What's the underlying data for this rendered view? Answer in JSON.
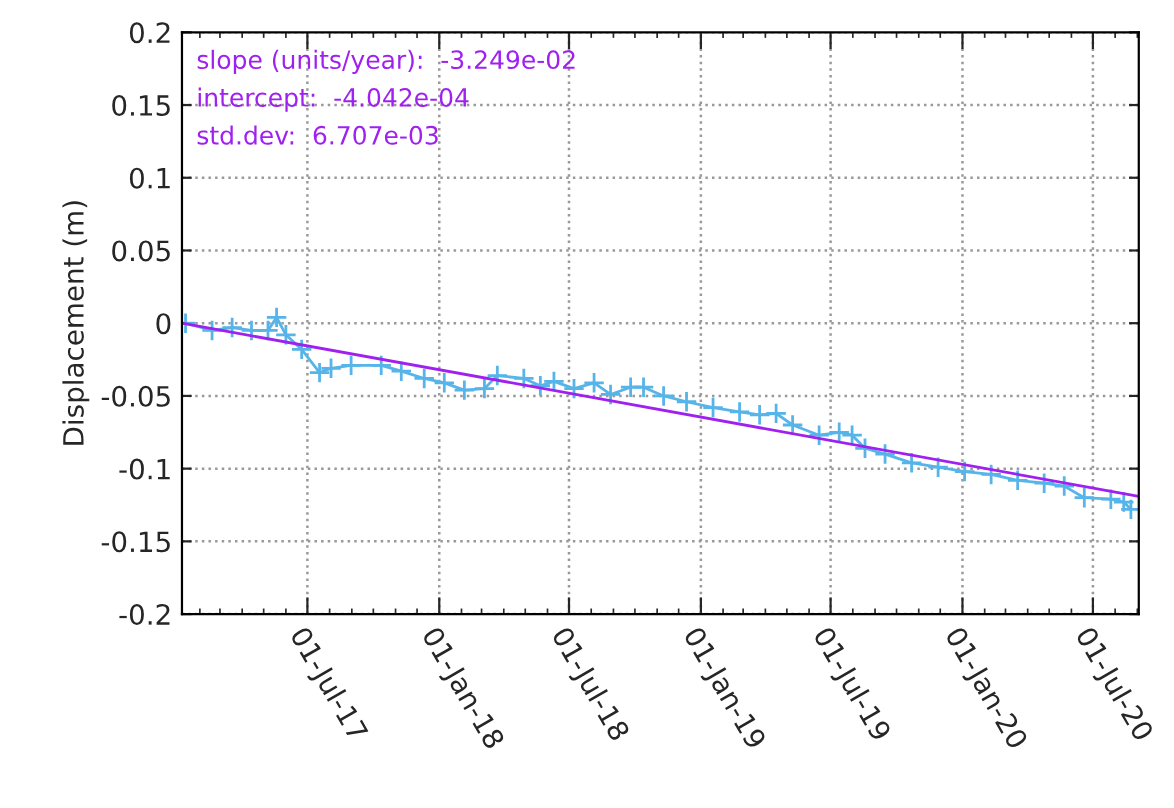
{
  "chart_data": {
    "type": "line",
    "ylabel": "Displacement (m)",
    "annotations": [
      "slope (units/year):  -3.249e-02",
      "intercept:  -4.042e-04",
      "std.dev:  6.707e-03"
    ],
    "xlim": [
      "2017-01-07",
      "2020-09-03"
    ],
    "xticks": [
      {
        "value": "2017-07-01",
        "label": "01-Jul-17"
      },
      {
        "value": "2018-01-01",
        "label": "01-Jan-18"
      },
      {
        "value": "2018-07-01",
        "label": "01-Jul-18"
      },
      {
        "value": "2019-01-01",
        "label": "01-Jan-19"
      },
      {
        "value": "2019-07-01",
        "label": "01-Jul-19"
      },
      {
        "value": "2020-01-01",
        "label": "01-Jan-20"
      },
      {
        "value": "2020-07-01",
        "label": "01-Jul-20"
      }
    ],
    "ylim": [
      -0.2,
      0.2
    ],
    "yticks": [
      {
        "value": -0.2,
        "label": "-0.2"
      },
      {
        "value": -0.15,
        "label": "-0.15"
      },
      {
        "value": -0.1,
        "label": "-0.1"
      },
      {
        "value": -0.05,
        "label": "-0.05"
      },
      {
        "value": 0,
        "label": "0"
      },
      {
        "value": 0.05,
        "label": "0.05"
      },
      {
        "value": 0.1,
        "label": "0.1"
      },
      {
        "value": 0.15,
        "label": "0.15"
      },
      {
        "value": 0.2,
        "label": "0.2"
      }
    ],
    "grid": true,
    "series": [
      {
        "color": "#56b4e9",
        "marker": "cross",
        "x": [
          "2017-01-12",
          "2017-02-18",
          "2017-03-18",
          "2017-04-14",
          "2017-05-07",
          "2017-05-19",
          "2017-06-01",
          "2017-06-23",
          "2017-07-18",
          "2017-08-03",
          "2017-08-31",
          "2017-10-12",
          "2017-11-09",
          "2017-12-11",
          "2018-01-08",
          "2018-02-05",
          "2018-03-05",
          "2018-03-23",
          "2018-04-29",
          "2018-05-22",
          "2018-06-10",
          "2018-07-08",
          "2018-08-05",
          "2018-08-28",
          "2018-09-25",
          "2018-10-13",
          "2018-11-10",
          "2018-12-12",
          "2019-01-18",
          "2019-02-24",
          "2019-03-24",
          "2019-04-16",
          "2019-05-09",
          "2019-06-15",
          "2019-07-13",
          "2019-07-31",
          "2019-08-18",
          "2019-09-15",
          "2019-10-22",
          "2019-11-28",
          "2020-01-04",
          "2020-02-10",
          "2020-03-18",
          "2020-04-24",
          "2020-05-22",
          "2020-06-19",
          "2020-07-26",
          "2020-08-13",
          "2020-08-23"
        ],
        "values": [
          0.0,
          -0.005,
          -0.003,
          -0.005,
          -0.005,
          0.004,
          -0.008,
          -0.018,
          -0.034,
          -0.031,
          -0.029,
          -0.029,
          -0.033,
          -0.038,
          -0.041,
          -0.046,
          -0.045,
          -0.036,
          -0.038,
          -0.043,
          -0.04,
          -0.045,
          -0.041,
          -0.049,
          -0.044,
          -0.044,
          -0.05,
          -0.054,
          -0.058,
          -0.061,
          -0.063,
          -0.062,
          -0.07,
          -0.077,
          -0.075,
          -0.077,
          -0.086,
          -0.09,
          -0.096,
          -0.099,
          -0.102,
          -0.104,
          -0.108,
          -0.11,
          -0.112,
          -0.12,
          -0.121,
          -0.123,
          -0.128
        ]
      },
      {
        "color": "#a020f0",
        "marker": "none",
        "x": [
          "2017-01-07",
          "2020-09-03"
        ],
        "values": [
          0.0,
          -0.119
        ]
      }
    ]
  }
}
